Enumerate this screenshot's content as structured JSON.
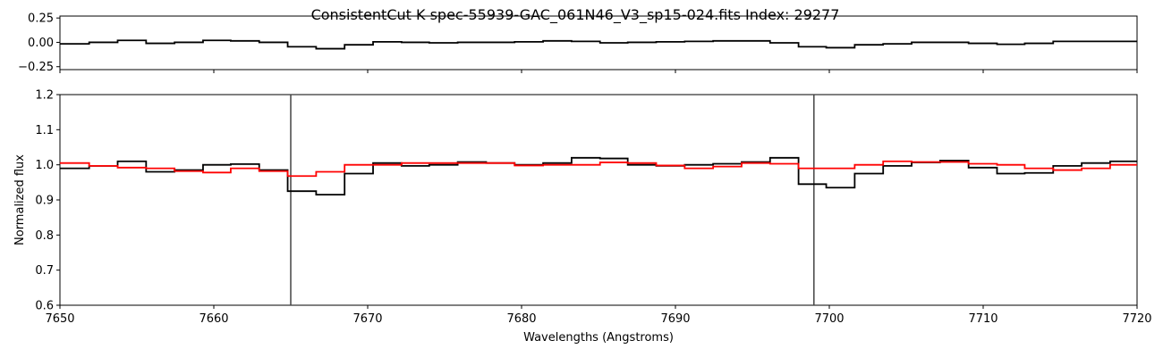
{
  "title": "ConsistentCut K spec-55939-GAC_061N46_V3_sp15-024.fits Index: 29277",
  "chart_data": [
    {
      "type": "line",
      "panel": "residual",
      "xlim": [
        7650,
        7720
      ],
      "ylim": [
        -0.28,
        0.27
      ],
      "yticks": [
        -0.25,
        0.0,
        0.25
      ],
      "ytick_labels": [
        "−0.25",
        "0.00",
        "0.25"
      ],
      "series": [
        {
          "color": "#000000",
          "step": true,
          "x": [
            7651.0,
            7652.8,
            7654.7,
            7656.5,
            7658.4,
            7660.2,
            7662.0,
            7663.9,
            7665.7,
            7667.6,
            7669.4,
            7671.3,
            7673.1,
            7674.9,
            7676.8,
            7678.6,
            7680.5,
            7682.3,
            7684.2,
            7686.0,
            7687.8,
            7689.7,
            7691.5,
            7693.4,
            7695.2,
            7697.1,
            7698.9,
            7700.7,
            7702.6,
            7704.4,
            7706.3,
            7708.1,
            7710.0,
            7711.8,
            7713.6,
            7715.5,
            7717.3,
            7719.2
          ],
          "y": [
            -0.015,
            0.0,
            0.02,
            -0.01,
            0.0,
            0.02,
            0.015,
            0.0,
            -0.045,
            -0.065,
            -0.025,
            0.005,
            0.0,
            -0.005,
            0.0,
            0.0,
            0.005,
            0.015,
            0.01,
            -0.005,
            0.0,
            0.005,
            0.01,
            0.015,
            0.015,
            -0.005,
            -0.045,
            -0.055,
            -0.025,
            -0.015,
            0.0,
            0.0,
            -0.01,
            -0.02,
            -0.01,
            0.01,
            0.01,
            0.01
          ]
        }
      ]
    },
    {
      "type": "line",
      "panel": "spectrum",
      "xlabel": "Wavelengths (Angstroms)",
      "ylabel": "Normalized flux",
      "xlim": [
        7650,
        7720
      ],
      "ylim": [
        0.6,
        1.2
      ],
      "xticks": [
        7650,
        7660,
        7670,
        7680,
        7690,
        7700,
        7710,
        7720
      ],
      "yticks": [
        0.6,
        0.7,
        0.8,
        0.9,
        1.0,
        1.1,
        1.2
      ],
      "ytick_labels": [
        "0.6",
        "0.7",
        "0.8",
        "0.9",
        "1.0",
        "1.1",
        "1.2"
      ],
      "vlines": [
        7665.0,
        7699.0
      ],
      "series": [
        {
          "color": "#000000",
          "step": true,
          "x": [
            7651.0,
            7652.8,
            7654.7,
            7656.5,
            7658.4,
            7660.2,
            7662.0,
            7663.9,
            7665.7,
            7667.6,
            7669.4,
            7671.3,
            7673.1,
            7674.9,
            7676.8,
            7678.6,
            7680.5,
            7682.3,
            7684.2,
            7686.0,
            7687.8,
            7689.7,
            7691.5,
            7693.4,
            7695.2,
            7697.1,
            7698.9,
            7700.7,
            7702.6,
            7704.4,
            7706.3,
            7708.1,
            7710.0,
            7711.8,
            7713.6,
            7715.5,
            7717.3,
            7719.2
          ],
          "y": [
            0.99,
            0.997,
            1.01,
            0.98,
            0.985,
            1.0,
            1.002,
            0.985,
            0.925,
            0.915,
            0.975,
            1.005,
            0.997,
            1.0,
            1.008,
            1.005,
            1.0,
            1.005,
            1.02,
            1.018,
            1.0,
            0.997,
            1.0,
            1.003,
            1.008,
            1.02,
            0.945,
            0.935,
            0.975,
            0.997,
            1.007,
            1.012,
            0.992,
            0.975,
            0.977,
            0.997,
            1.005,
            1.01
          ]
        },
        {
          "color": "#ff0000",
          "step": true,
          "x": [
            7651.0,
            7652.8,
            7654.7,
            7656.5,
            7658.4,
            7660.2,
            7662.0,
            7663.9,
            7665.7,
            7667.6,
            7669.4,
            7671.3,
            7673.1,
            7674.9,
            7676.8,
            7678.6,
            7680.5,
            7682.3,
            7684.2,
            7686.0,
            7687.8,
            7689.7,
            7691.5,
            7693.4,
            7695.2,
            7697.1,
            7698.9,
            7700.7,
            7702.6,
            7704.4,
            7706.3,
            7708.1,
            7710.0,
            7711.8,
            7713.6,
            7715.5,
            7717.3,
            7719.2
          ],
          "y": [
            1.005,
            0.997,
            0.992,
            0.99,
            0.982,
            0.978,
            0.99,
            0.982,
            0.968,
            0.98,
            1.0,
            1.0,
            1.005,
            1.005,
            1.005,
            1.005,
            0.998,
            1.0,
            1.0,
            1.007,
            1.005,
            0.998,
            0.99,
            0.995,
            1.005,
            1.003,
            0.99,
            0.99,
            1.0,
            1.01,
            1.008,
            1.008,
            1.003,
            1.0,
            0.99,
            0.985,
            0.99,
            1.0
          ]
        }
      ]
    }
  ]
}
